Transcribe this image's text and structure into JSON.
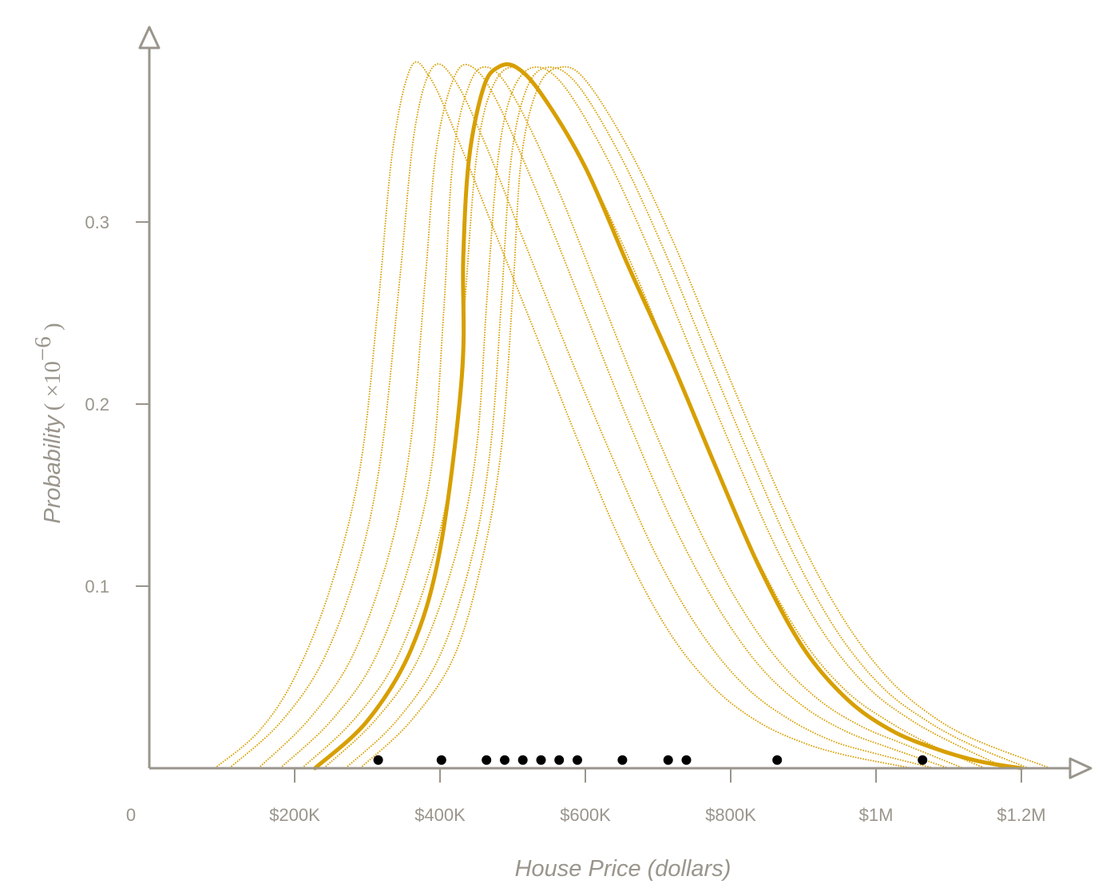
{
  "chart_data": {
    "type": "line",
    "xlabel": "House Price (dollars)",
    "ylabel": "Probability",
    "ylabel_unit": "( ×10",
    "ylabel_unit_exp": "−6",
    "ylabel_unit_close": " )",
    "xlim": [
      0,
      1250000
    ],
    "ylim": [
      0,
      0.385
    ],
    "x_ticks": [
      {
        "value": 0,
        "label": "0"
      },
      {
        "value": 200000,
        "label": "$200K"
      },
      {
        "value": 400000,
        "label": "$400K"
      },
      {
        "value": 600000,
        "label": "$600K"
      },
      {
        "value": 800000,
        "label": "$800K"
      },
      {
        "value": 1000000,
        "label": "$1M"
      },
      {
        "value": 1200000,
        "label": "$1.2M"
      }
    ],
    "y_ticks": [
      {
        "value": 0.1,
        "label": "0.1"
      },
      {
        "value": 0.2,
        "label": "0.2"
      },
      {
        "value": 0.3,
        "label": "0.3"
      }
    ],
    "colors": {
      "curve": "#d79f00",
      "points": "#000000",
      "axis": "#9a958c"
    },
    "main_curve": {
      "x": [
        228000,
        300000,
        360000,
        400000,
        430000,
        432000,
        440000,
        460000,
        480000,
        505000,
        540000,
        600000,
        660000,
        720000,
        780000,
        840000,
        900000,
        960000,
        1020000,
        1080000,
        1140000,
        1200000
      ],
      "y": [
        0.0,
        0.026,
        0.065,
        0.12,
        0.215,
        0.28,
        0.335,
        0.374,
        0.385,
        0.385,
        0.37,
        0.33,
        0.275,
        0.222,
        0.165,
        0.11,
        0.066,
        0.038,
        0.021,
        0.011,
        0.004,
        0.0
      ]
    },
    "samples": [
      {
        "x": [
          90000,
          150000,
          200000,
          250000,
          290000,
          315000,
          335000,
          360000,
          385000,
          420000,
          480000,
          540000,
          600000,
          660000,
          720000,
          780000,
          840000,
          900000,
          960000,
          1050000
        ],
        "y": [
          0.0,
          0.02,
          0.05,
          0.1,
          0.165,
          0.255,
          0.34,
          0.385,
          0.38,
          0.35,
          0.29,
          0.23,
          0.17,
          0.115,
          0.072,
          0.043,
          0.025,
          0.014,
          0.007,
          0.0
        ]
      },
      {
        "x": [
          110000,
          180000,
          240000,
          290000,
          320000,
          345000,
          365000,
          390000,
          420000,
          460000,
          520000,
          580000,
          640000,
          700000,
          760000,
          820000,
          880000,
          940000,
          1000000,
          1080000
        ],
        "y": [
          0.0,
          0.025,
          0.06,
          0.115,
          0.175,
          0.27,
          0.35,
          0.385,
          0.378,
          0.345,
          0.285,
          0.225,
          0.168,
          0.115,
          0.074,
          0.045,
          0.027,
          0.015,
          0.008,
          0.0
        ]
      },
      {
        "x": [
          150000,
          220000,
          280000,
          330000,
          360000,
          380000,
          395000,
          420000,
          445000,
          480000,
          540000,
          600000,
          660000,
          720000,
          780000,
          840000,
          900000,
          960000,
          1020000,
          1100000
        ],
        "y": [
          0.0,
          0.027,
          0.062,
          0.118,
          0.18,
          0.27,
          0.34,
          0.38,
          0.385,
          0.365,
          0.31,
          0.25,
          0.19,
          0.135,
          0.09,
          0.056,
          0.034,
          0.02,
          0.011,
          0.0
        ]
      },
      {
        "x": [
          180000,
          250000,
          310000,
          360000,
          390000,
          405000,
          418000,
          440000,
          465000,
          500000,
          560000,
          620000,
          680000,
          740000,
          800000,
          860000,
          920000,
          980000,
          1040000,
          1120000
        ],
        "y": [
          0.0,
          0.026,
          0.06,
          0.115,
          0.17,
          0.25,
          0.335,
          0.375,
          0.385,
          0.37,
          0.32,
          0.26,
          0.2,
          0.145,
          0.098,
          0.062,
          0.038,
          0.023,
          0.013,
          0.0
        ]
      },
      {
        "x": [
          210000,
          280000,
          340000,
          390000,
          420000,
          435000,
          450000,
          470000,
          500000,
          540000,
          600000,
          660000,
          720000,
          780000,
          840000,
          900000,
          960000,
          1020000,
          1080000,
          1150000
        ],
        "y": [
          0.0,
          0.026,
          0.06,
          0.115,
          0.175,
          0.26,
          0.335,
          0.372,
          0.385,
          0.37,
          0.33,
          0.28,
          0.222,
          0.165,
          0.112,
          0.07,
          0.042,
          0.025,
          0.012,
          0.0
        ]
      },
      {
        "x": [
          240000,
          310000,
          370000,
          420000,
          450000,
          465000,
          480000,
          500000,
          530000,
          570000,
          630000,
          690000,
          750000,
          810000,
          870000,
          930000,
          990000,
          1050000,
          1110000,
          1180000
        ],
        "y": [
          0.0,
          0.026,
          0.06,
          0.115,
          0.175,
          0.26,
          0.335,
          0.372,
          0.385,
          0.375,
          0.335,
          0.283,
          0.225,
          0.168,
          0.115,
          0.073,
          0.044,
          0.026,
          0.013,
          0.0
        ]
      },
      {
        "x": [
          270000,
          340000,
          400000,
          445000,
          470000,
          485000,
          498000,
          520000,
          550000,
          590000,
          650000,
          710000,
          770000,
          830000,
          890000,
          950000,
          1010000,
          1070000,
          1130000,
          1210000
        ],
        "y": [
          0.0,
          0.026,
          0.062,
          0.118,
          0.178,
          0.26,
          0.335,
          0.374,
          0.385,
          0.375,
          0.335,
          0.283,
          0.225,
          0.168,
          0.115,
          0.073,
          0.044,
          0.026,
          0.013,
          0.0
        ]
      },
      {
        "x": [
          290000,
          360000,
          420000,
          460000,
          485000,
          500000,
          512000,
          535000,
          565000,
          600000,
          660000,
          720000,
          780000,
          840000,
          900000,
          960000,
          1020000,
          1080000,
          1140000,
          1240000
        ],
        "y": [
          0.0,
          0.026,
          0.062,
          0.118,
          0.178,
          0.26,
          0.335,
          0.374,
          0.385,
          0.378,
          0.34,
          0.29,
          0.232,
          0.175,
          0.122,
          0.079,
          0.048,
          0.028,
          0.015,
          0.0
        ]
      }
    ],
    "points": {
      "x": [
        315000,
        402000,
        464000,
        489000,
        514000,
        539000,
        564000,
        589000,
        651000,
        714000,
        739000,
        864000,
        1064000
      ],
      "y": [
        0.0045,
        0.0045,
        0.0045,
        0.0045,
        0.0045,
        0.0045,
        0.0045,
        0.0045,
        0.0045,
        0.0045,
        0.0045,
        0.0045,
        0.0045
      ]
    }
  }
}
